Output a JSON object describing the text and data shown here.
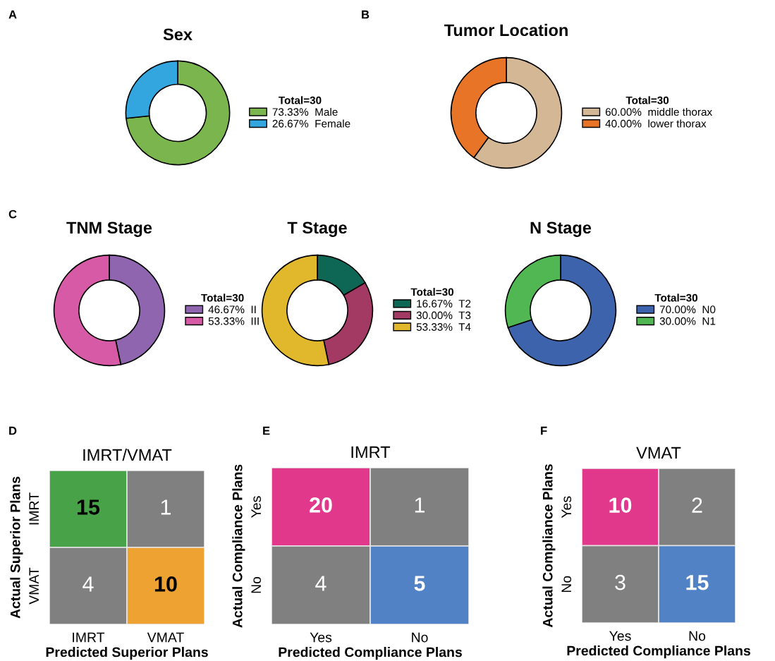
{
  "chart_data": [
    {
      "type": "donut",
      "title": "Sex",
      "legend_title": "Total=30",
      "legend": "right",
      "annotations": [
        "A"
      ],
      "categories": [
        "Male",
        "Female"
      ],
      "values": [
        73.33,
        26.67
      ],
      "value_labels": [
        "73.33%",
        "26.67%"
      ],
      "colors": [
        "#7ab54e",
        "#33a5df"
      ]
    },
    {
      "type": "donut",
      "title": "Tumor Location",
      "legend_title": "Total=30",
      "legend": "right",
      "annotations": [
        "B"
      ],
      "categories": [
        "middle thorax",
        "lower thorax"
      ],
      "values": [
        60.0,
        40.0
      ],
      "value_labels": [
        "60.00%",
        "40.00%"
      ],
      "colors": [
        "#d4b896",
        "#e87427"
      ]
    },
    {
      "type": "donut",
      "title": "TNM Stage",
      "legend_title": "Total=30",
      "legend": "right",
      "annotations": [
        "C"
      ],
      "categories": [
        "II",
        "III"
      ],
      "values": [
        46.67,
        53.33
      ],
      "value_labels": [
        "46.67%",
        "53.33%"
      ],
      "colors": [
        "#8e65ae",
        "#d65aa5"
      ]
    },
    {
      "type": "donut",
      "title": "T Stage",
      "legend_title": "Total=30",
      "legend": "right",
      "categories": [
        "T2",
        "T3",
        "T4"
      ],
      "values": [
        16.67,
        30.0,
        53.33
      ],
      "value_labels": [
        "16.67%",
        "30.00%",
        "53.33%"
      ],
      "colors": [
        "#0e6654",
        "#a23a63",
        "#e1b72b"
      ]
    },
    {
      "type": "donut",
      "title": "N Stage",
      "legend_title": "Total=30",
      "legend": "right",
      "categories": [
        "N0",
        "N1"
      ],
      "values": [
        70.0,
        30.0
      ],
      "value_labels": [
        "70.00%",
        "30.00%"
      ],
      "colors": [
        "#3e63ad",
        "#51b752"
      ]
    },
    {
      "type": "heatmap",
      "title": "IMRT/VMAT",
      "xlabel": "Predicted Superior Plans",
      "ylabel": "Actual Superior Plans",
      "annotations": [
        "D"
      ],
      "categories": [
        "IMRT",
        "VMAT"
      ],
      "y_categories": [
        "IMRT",
        "VMAT"
      ],
      "cells": [
        [
          15,
          1
        ],
        [
          4,
          10
        ]
      ],
      "colors": [
        [
          "#48a348",
          "#808080"
        ],
        [
          "#808080",
          "#eea232"
        ]
      ],
      "data_labels": true
    },
    {
      "type": "heatmap",
      "title": "IMRT",
      "xlabel": "Predicted Compliance Plans",
      "ylabel": "Actual Compliance Plans",
      "annotations": [
        "E"
      ],
      "categories": [
        "Yes",
        "No"
      ],
      "y_categories": [
        "Yes",
        "No"
      ],
      "cells": [
        [
          20,
          1
        ],
        [
          4,
          5
        ]
      ],
      "colors": [
        [
          "#e2388c",
          "#808080"
        ],
        [
          "#808080",
          "#5182c5"
        ]
      ],
      "data_labels": true
    },
    {
      "type": "heatmap",
      "title": "VMAT",
      "xlabel": "Predicted Compliance Plans",
      "ylabel": "Actual Compliance Plans",
      "annotations": [
        "F"
      ],
      "categories": [
        "Yes",
        "No"
      ],
      "y_categories": [
        "Yes",
        "No"
      ],
      "cells": [
        [
          10,
          2
        ],
        [
          3,
          15
        ]
      ],
      "colors": [
        [
          "#e2388c",
          "#808080"
        ],
        [
          "#808080",
          "#5182c5"
        ]
      ],
      "data_labels": true
    }
  ]
}
